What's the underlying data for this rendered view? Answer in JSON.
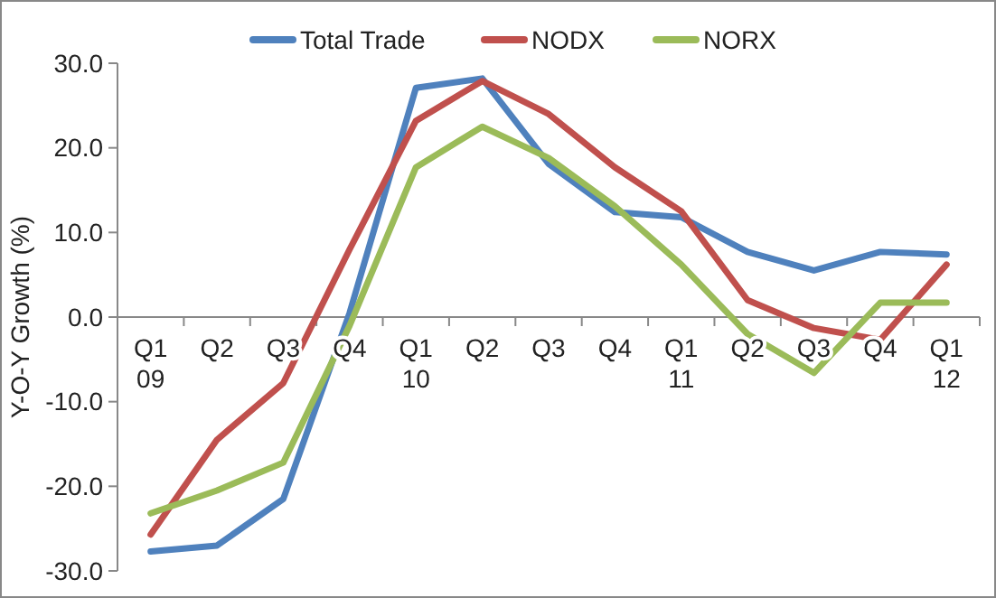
{
  "chart_data": {
    "type": "line",
    "ylabel": "Y-O-Y Growth (%)",
    "categories": [
      "Q1\n09",
      "Q2",
      "Q3",
      "Q4",
      "Q1\n10",
      "Q2",
      "Q3",
      "Q4",
      "Q1\n11",
      "Q2",
      "Q3",
      "Q4",
      "Q1\n12"
    ],
    "series": [
      {
        "name": "Total Trade",
        "color": "#4f81bd",
        "values": [
          -27.7,
          -27.0,
          -21.5,
          0.5,
          27.1,
          28.2,
          18.1,
          12.4,
          11.8,
          7.7,
          5.5,
          7.7,
          7.4
        ]
      },
      {
        "name": "NODX",
        "color": "#c0504d",
        "values": [
          -25.7,
          -14.5,
          -7.8,
          8.0,
          23.2,
          27.9,
          24.0,
          17.7,
          12.5,
          2.0,
          -1.3,
          -2.7,
          6.2
        ]
      },
      {
        "name": "NORX",
        "color": "#9bbb59",
        "values": [
          -23.2,
          -20.5,
          -17.2,
          -1.0,
          17.7,
          22.5,
          18.8,
          13.1,
          6.2,
          -2.0,
          -6.6,
          1.7,
          1.7
        ]
      }
    ],
    "ylim": [
      -30,
      30
    ],
    "yticks": [
      {
        "value": -30,
        "label": "-30.0"
      },
      {
        "value": -20,
        "label": "-20.0"
      },
      {
        "value": -10,
        "label": "-10.0"
      },
      {
        "value": 0,
        "label": "0.0"
      },
      {
        "value": 10,
        "label": "10.0"
      },
      {
        "value": 20,
        "label": "20.0"
      },
      {
        "value": 30,
        "label": "30.0"
      }
    ],
    "grid": false,
    "legend": "top",
    "marker": "none",
    "line_style": "solid"
  }
}
